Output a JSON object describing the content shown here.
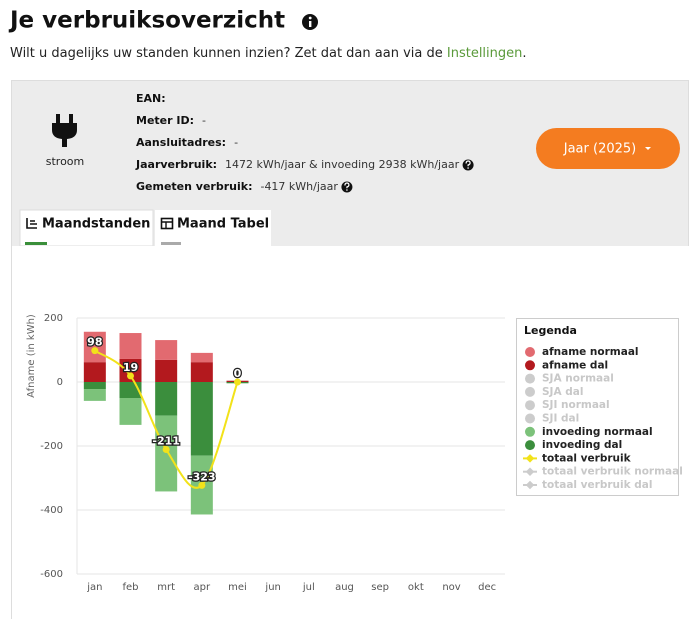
{
  "header": {
    "title": "Je verbruiksoverzicht",
    "subtitle": "Wilt u dagelijks uw standen kunnen inzien? Zet dat dan aan via de",
    "link": "Instellingen",
    "subtitle_end": "."
  },
  "meter": {
    "kind": "stroom",
    "fields": [
      {
        "label": "EAN:"
      },
      {
        "label": "Meter ID:",
        "value": "-"
      },
      {
        "label": "Aansluitadres:",
        "value": "-"
      },
      {
        "label": "Jaarverbruik:",
        "value": "1472 kWh/jaar & invoeding 2938 kWh/jaar"
      },
      {
        "label": "Gemeten verbruik:",
        "value": "-417 kWh/jaar"
      }
    ]
  },
  "button": "Jaar (2025)",
  "tabs": [
    "Maandstanden",
    "Maand Tabel"
  ],
  "chart_data": {
    "type": "bar",
    "stacked": true,
    "y_label": "Afname (in kWh)",
    "legend_title": "Legenda",
    "legend": "right",
    "categories": [
      "jan",
      "feb",
      "mrt",
      "apr",
      "mei",
      "jun",
      "jul",
      "aug",
      "sep",
      "okt",
      "nov",
      "dec"
    ],
    "ylim": [
      -600,
      200
    ],
    "yticks": [
      200,
      0,
      -200,
      -400,
      -600
    ],
    "grid": true,
    "series": [
      {
        "name": "afname normaal",
        "kind": "bar",
        "visible": true,
        "color": "#e26a70",
        "values": [
          95,
          81,
          62,
          29,
          0,
          null,
          null,
          null,
          null,
          null,
          null,
          null
        ]
      },
      {
        "name": "afname dal",
        "kind": "bar",
        "visible": true,
        "color": "#b3191e",
        "values": [
          62,
          72,
          69,
          62,
          4,
          null,
          null,
          null,
          null,
          null,
          null,
          null
        ]
      },
      {
        "name": "SJA normaal",
        "kind": "bar",
        "visible": false,
        "color": "#cccccc",
        "values": [
          null,
          null,
          null,
          null,
          null,
          null,
          null,
          null,
          null,
          null,
          null,
          null
        ]
      },
      {
        "name": "SJA dal",
        "kind": "bar",
        "visible": false,
        "color": "#cccccc",
        "values": [
          null,
          null,
          null,
          null,
          null,
          null,
          null,
          null,
          null,
          null,
          null,
          null
        ]
      },
      {
        "name": "SJI normaal",
        "kind": "bar",
        "visible": false,
        "color": "#cccccc",
        "values": [
          null,
          null,
          null,
          null,
          null,
          null,
          null,
          null,
          null,
          null,
          null,
          null
        ]
      },
      {
        "name": "SJI dal",
        "kind": "bar",
        "visible": false,
        "color": "#cccccc",
        "values": [
          null,
          null,
          null,
          null,
          null,
          null,
          null,
          null,
          null,
          null,
          null,
          null
        ]
      },
      {
        "name": "invoeding normaal",
        "kind": "bar",
        "visible": true,
        "color": "#7cc27a",
        "values": [
          -37,
          -84,
          -237,
          -184,
          0,
          null,
          null,
          null,
          null,
          null,
          null,
          null
        ]
      },
      {
        "name": "invoeding dal",
        "kind": "bar",
        "visible": true,
        "color": "#3b8e3d",
        "values": [
          -22,
          -50,
          -105,
          -230,
          -4,
          null,
          null,
          null,
          null,
          null,
          null,
          null
        ]
      },
      {
        "name": "totaal verbruik",
        "kind": "line",
        "visible": true,
        "color": "#f2e21a",
        "values": [
          98,
          19,
          -211,
          -323,
          0,
          null,
          null,
          null,
          null,
          null,
          null,
          null
        ]
      },
      {
        "name": "totaal verbruik normaal",
        "kind": "line",
        "visible": false,
        "color": "#cccccc",
        "values": [
          null,
          null,
          null,
          null,
          null,
          null,
          null,
          null,
          null,
          null,
          null,
          null
        ]
      },
      {
        "name": "totaal verbruik dal",
        "kind": "line",
        "visible": false,
        "color": "#cccccc",
        "values": [
          null,
          null,
          null,
          null,
          null,
          null,
          null,
          null,
          null,
          null,
          null,
          null
        ]
      }
    ]
  }
}
